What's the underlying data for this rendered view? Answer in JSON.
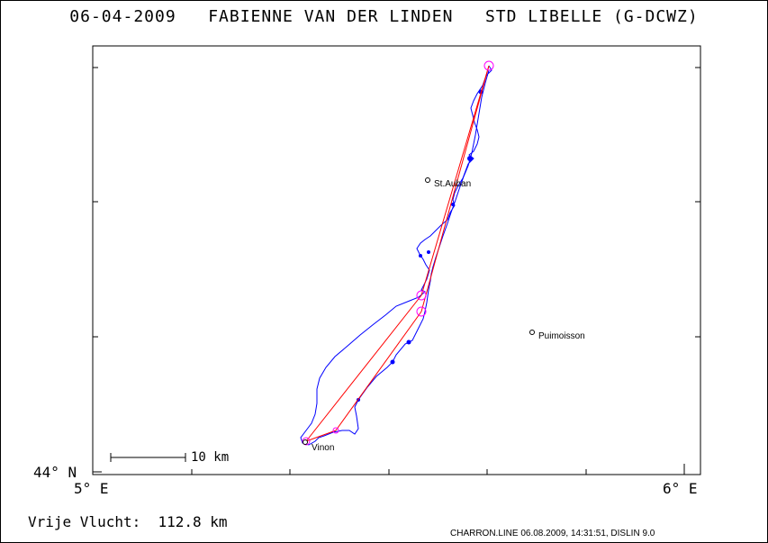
{
  "header": {
    "date": "06-04-2009",
    "pilot": "FABIENNE VAN DER LINDEN",
    "glider": "STD LIBELLE (G-DCWZ)"
  },
  "axes": {
    "lat_label": "44° N",
    "lon_left_label": "5° E",
    "lon_right_label": "6° E"
  },
  "scale_bar": {
    "label": "10 km"
  },
  "towns": [
    {
      "name": "St.Auban"
    },
    {
      "name": "Puimoisson"
    },
    {
      "name": "Vinon"
    }
  ],
  "result": {
    "label": "Vrije Vlucht:",
    "value": "112.8 km"
  },
  "footer": {
    "text": "CHARRON.LINE 06.08.2009, 14:31:51, DISLIN 9.0"
  },
  "colors": {
    "track": "#0000ff",
    "task": "#ff0000",
    "turnpoint": "#ff00ff",
    "text": "#000000"
  }
}
